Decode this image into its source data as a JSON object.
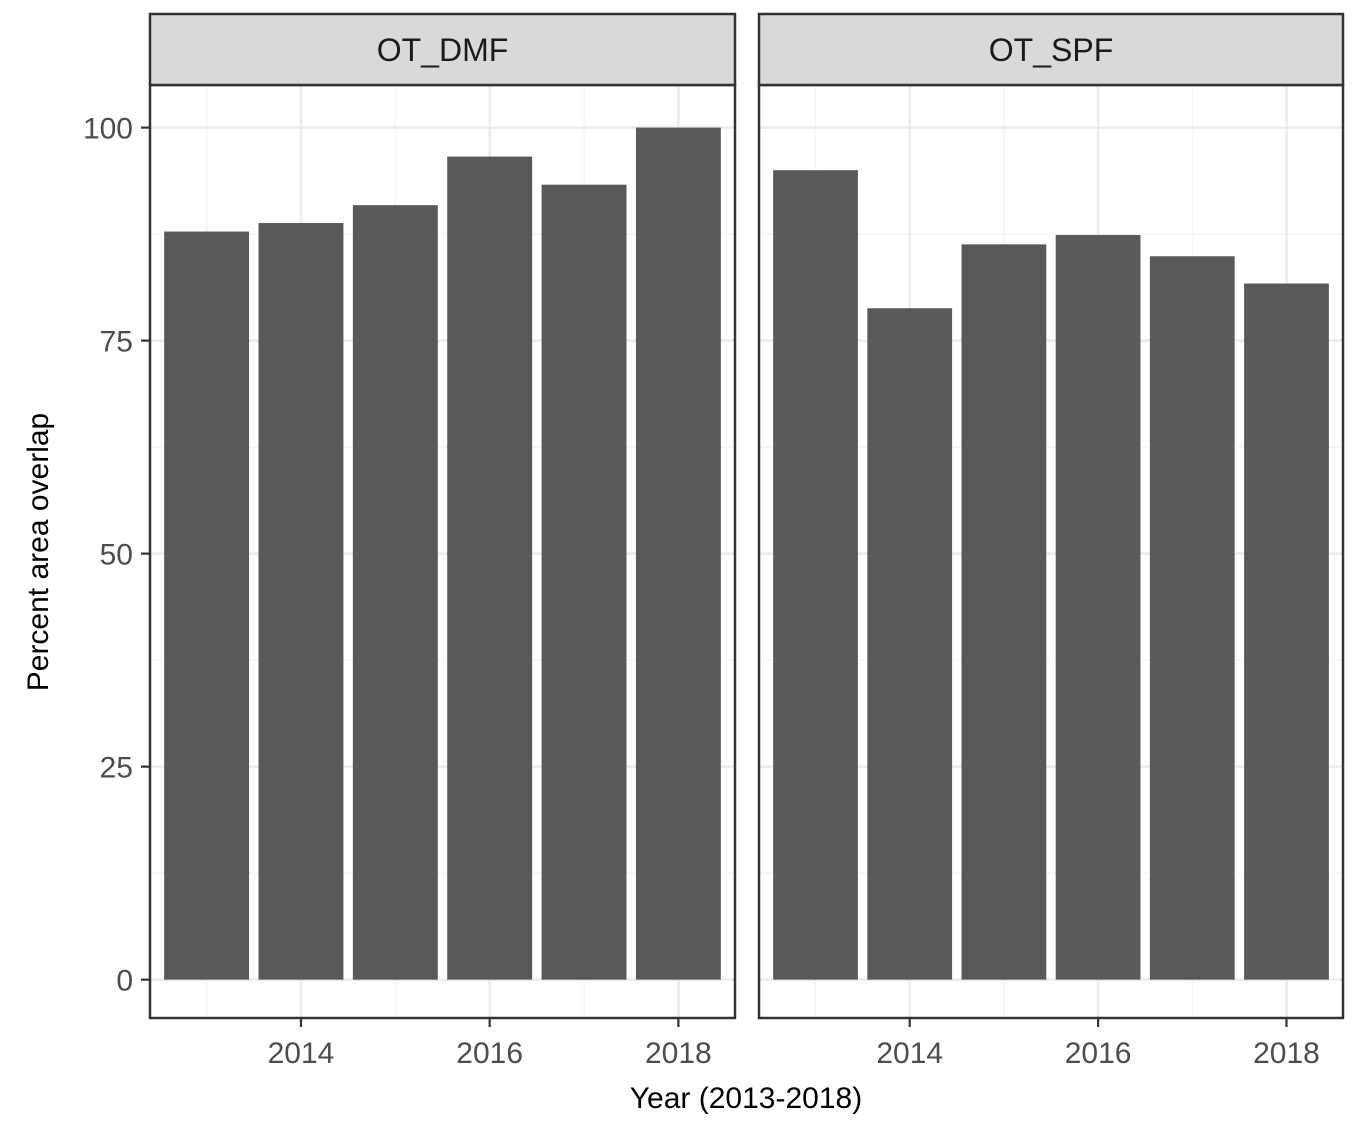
{
  "chart_data": {
    "type": "bar",
    "xlabel": "Year (2013-2018)",
    "ylabel": "Percent area overlap",
    "ylim": [
      -4.5,
      105
    ],
    "xlim": [
      2012.4,
      2018.6
    ],
    "y_ticks": [
      "0",
      "25",
      "50",
      "75",
      "100"
    ],
    "x_ticks": [
      "2014",
      "2016",
      "2018"
    ],
    "grid": true,
    "bar_color": "#595959",
    "strip_color": "#d9d9d9",
    "facets": [
      {
        "label": "OT_DMF",
        "x": [
          2013,
          2014,
          2015,
          2016,
          2017,
          2018
        ],
        "values": [
          87.8,
          88.8,
          90.9,
          96.6,
          93.3,
          100
        ]
      },
      {
        "label": "OT_SPF",
        "x": [
          2013,
          2014,
          2015,
          2016,
          2017,
          2018
        ],
        "values": [
          95.0,
          78.8,
          86.3,
          87.4,
          84.9,
          81.7
        ]
      }
    ]
  }
}
